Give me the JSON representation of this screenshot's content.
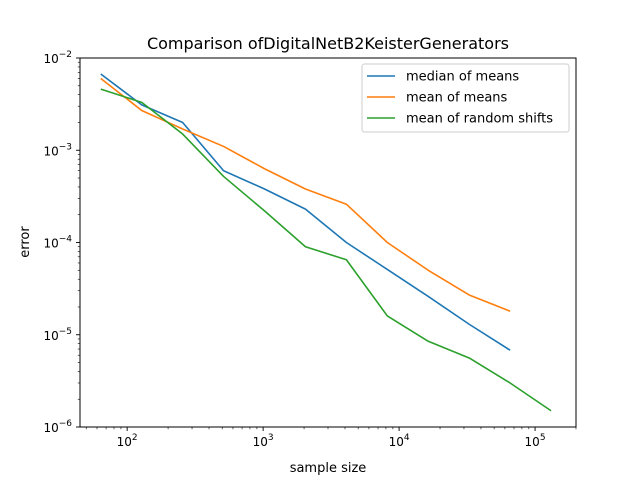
{
  "chart_data": {
    "type": "line",
    "title": "Comparison ofDigitalNetB2KeisterGenerators",
    "xlabel": "sample size",
    "ylabel": "error",
    "xscale": "log",
    "yscale": "log",
    "xlim": [
      45,
      200000
    ],
    "ylim": [
      1e-06,
      0.01
    ],
    "grid": false,
    "legend_position": "top-right",
    "x_major_ticks": [
      100,
      1000,
      10000,
      100000
    ],
    "x_major_tick_labels": [
      {
        "base": "10",
        "exp": "2"
      },
      {
        "base": "10",
        "exp": "3"
      },
      {
        "base": "10",
        "exp": "4"
      },
      {
        "base": "10",
        "exp": "5"
      }
    ],
    "y_major_ticks": [
      1e-06,
      1e-05,
      0.0001,
      0.001,
      0.01
    ],
    "y_major_tick_labels": [
      {
        "base": "10",
        "exp": "−6"
      },
      {
        "base": "10",
        "exp": "−5"
      },
      {
        "base": "10",
        "exp": "−4"
      },
      {
        "base": "10",
        "exp": "−3"
      },
      {
        "base": "10",
        "exp": "−2"
      }
    ],
    "series": [
      {
        "name": "median of means",
        "color": "#1f77b4",
        "x": [
          64,
          128,
          256,
          512,
          1024,
          2048,
          4096,
          8192,
          16384,
          32768,
          65536
        ],
        "y": [
          0.0067,
          0.0031,
          0.002,
          0.0006,
          0.00038,
          0.00023,
          0.0001,
          5.1e-05,
          2.6e-05,
          1.3e-05,
          6.8e-06
        ]
      },
      {
        "name": "mean of means",
        "color": "#ff7f0e",
        "x": [
          64,
          128,
          256,
          512,
          1024,
          2048,
          4096,
          8192,
          16384,
          32768,
          65536
        ],
        "y": [
          0.006,
          0.0027,
          0.0017,
          0.0011,
          0.00063,
          0.00038,
          0.00026,
          0.0001,
          5e-05,
          2.7e-05,
          1.8e-05
        ]
      },
      {
        "name": "mean of random shifts",
        "color": "#2ca02c",
        "x": [
          64,
          128,
          256,
          512,
          1024,
          2048,
          4096,
          8192,
          16384,
          32768,
          65536,
          131072
        ],
        "y": [
          0.0046,
          0.0033,
          0.0015,
          0.00052,
          0.00022,
          9e-05,
          6.5e-05,
          1.6e-05,
          8.5e-06,
          5.6e-06,
          3e-06,
          1.5e-06
        ]
      }
    ]
  }
}
